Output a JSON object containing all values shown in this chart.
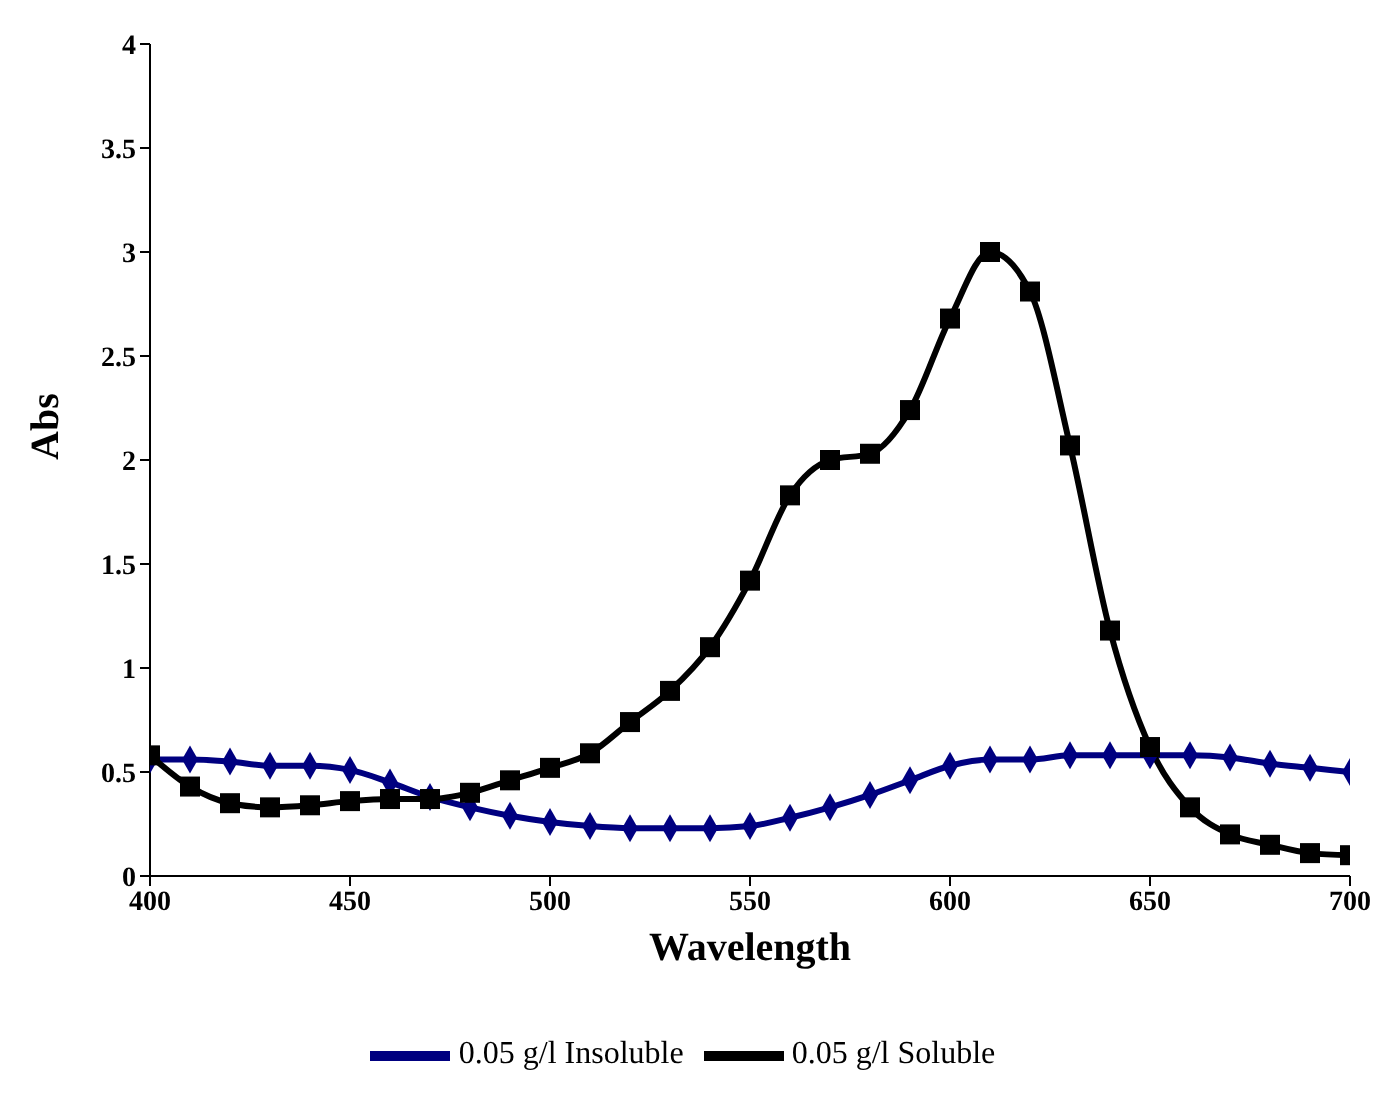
{
  "chart_data": {
    "type": "line",
    "xlabel": "Wavelength",
    "ylabel": "Abs",
    "x": [
      400,
      410,
      420,
      430,
      440,
      450,
      460,
      470,
      480,
      490,
      500,
      510,
      520,
      530,
      540,
      550,
      560,
      570,
      580,
      590,
      600,
      610,
      620,
      630,
      640,
      650,
      660,
      670,
      680,
      690,
      700
    ],
    "series": [
      {
        "name": "0.05 g/l Insoluble",
        "color": "#000080",
        "marker": "diamond",
        "values": [
          0.56,
          0.56,
          0.55,
          0.53,
          0.53,
          0.51,
          0.45,
          0.38,
          0.33,
          0.29,
          0.26,
          0.24,
          0.23,
          0.23,
          0.23,
          0.24,
          0.28,
          0.33,
          0.39,
          0.46,
          0.53,
          0.56,
          0.56,
          0.58,
          0.58,
          0.58,
          0.58,
          0.57,
          0.54,
          0.52,
          0.5
        ]
      },
      {
        "name": "0.05 g/l Soluble",
        "color": "#000000",
        "marker": "square",
        "values": [
          0.58,
          0.43,
          0.35,
          0.33,
          0.34,
          0.36,
          0.37,
          0.37,
          0.4,
          0.46,
          0.52,
          0.59,
          0.74,
          0.89,
          1.1,
          1.42,
          1.83,
          2.0,
          2.03,
          2.24,
          2.68,
          3.0,
          2.81,
          2.07,
          1.18,
          0.62,
          0.33,
          0.2,
          0.15,
          0.11,
          0.1
        ]
      }
    ],
    "xlim": [
      400,
      700
    ],
    "xticks": [
      400,
      450,
      500,
      550,
      600,
      650,
      700
    ],
    "ylim": [
      0,
      4
    ],
    "yticks": [
      0,
      0.5,
      1,
      1.5,
      2,
      2.5,
      3,
      3.5,
      4
    ],
    "grid": false,
    "legend": "bottom"
  }
}
